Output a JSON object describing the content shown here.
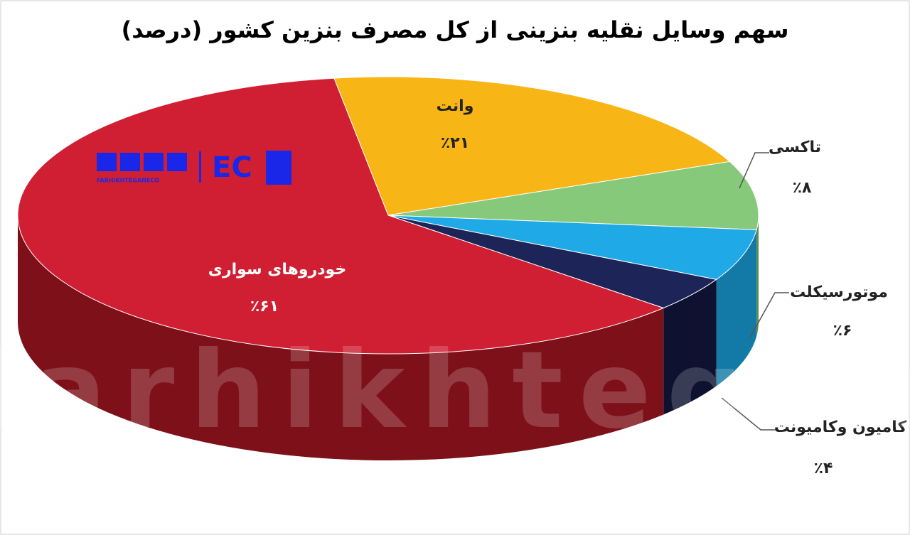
{
  "chart_data": {
    "type": "pie3d",
    "title": "سهم وسایل نقلیه بنزینی از کل مصرف بنزین کشور (درصد)",
    "categories": [
      "وانت",
      "تاکسی",
      "موتورسیکلت",
      "کامیون وکامیونت",
      "خودروهای سواری"
    ],
    "values": [
      21,
      8,
      6,
      4,
      61
    ],
    "value_labels": [
      "٪۲۱",
      "٪۸",
      "٪۶",
      "٪۴",
      "٪۶۱"
    ],
    "colors": [
      "#f7b516",
      "#86c97a",
      "#1fa9e6",
      "#1d2458",
      "#d01f32"
    ],
    "side_colors": [
      "#b5820c",
      "#5a8f51",
      "#137aa8",
      "#0e1230",
      "#7e1019"
    ]
  },
  "branding": {
    "watermark": "farhikhtegan",
    "site": "FARHIKHTEGANECO",
    "logo": "EC"
  }
}
